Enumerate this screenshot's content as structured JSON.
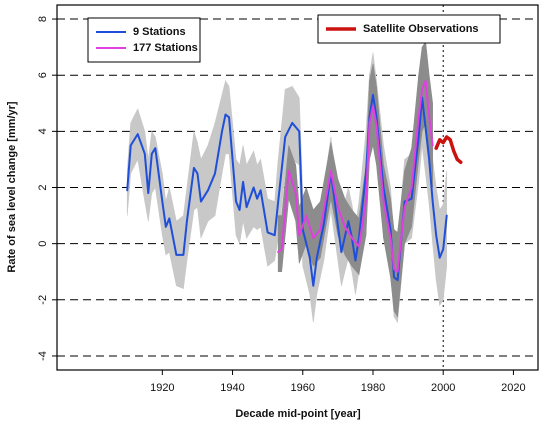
{
  "chart_data": {
    "type": "line",
    "xlabel": "Decade mid-point [year]",
    "ylabel": "Rate of sea level change [mm/yr]",
    "xlim": [
      1890,
      2027
    ],
    "ylim": [
      -4.5,
      8.5
    ],
    "xticks": [
      1920,
      1940,
      1960,
      1980,
      2000,
      2020
    ],
    "yticks": [
      -4,
      -2,
      0,
      2,
      4,
      6,
      8
    ],
    "grid": true,
    "vline": 2000,
    "legends": [
      {
        "loc": "upper left",
        "series": [
          0,
          1
        ]
      },
      {
        "loc": "upper right",
        "series": [
          2
        ]
      }
    ],
    "series": [
      {
        "name": "9 Stations",
        "color": "#1f4fd8",
        "band_color": "#c8c8c8",
        "x": [
          1910,
          1911,
          1913,
          1915,
          1916,
          1917,
          1918,
          1920,
          1921,
          1922,
          1924,
          1926,
          1927,
          1929,
          1930,
          1931,
          1933,
          1935,
          1937,
          1938,
          1939,
          1941,
          1942,
          1943,
          1944,
          1946,
          1947,
          1948,
          1950,
          1952,
          1953,
          1955,
          1957,
          1959,
          1960,
          1962,
          1963,
          1964,
          1966,
          1968,
          1969,
          1971,
          1973,
          1974,
          1975,
          1976,
          1978,
          1979,
          1980,
          1981,
          1983,
          1985,
          1986,
          1987,
          1989,
          1991,
          1993,
          1994,
          1996,
          1997,
          1998,
          1999,
          2000,
          2001
        ],
        "values": [
          1.9,
          3.5,
          3.9,
          3.2,
          1.8,
          3.2,
          3.4,
          1.5,
          0.6,
          0.9,
          -0.4,
          -0.4,
          0.8,
          2.7,
          2.5,
          1.5,
          1.9,
          2.5,
          4.0,
          4.6,
          4.5,
          1.5,
          1.2,
          2.2,
          1.3,
          2.0,
          1.6,
          1.9,
          0.4,
          0.3,
          1.5,
          3.8,
          4.3,
          4.0,
          0.5,
          -0.5,
          -1.5,
          -0.5,
          0.7,
          2.5,
          1.6,
          -0.3,
          0.8,
          0.2,
          -0.6,
          0.2,
          2.5,
          4.5,
          5.3,
          4.5,
          2.0,
          0.5,
          -1.2,
          -1.3,
          1.5,
          1.6,
          3.8,
          5.2,
          3.0,
          1.5,
          0.3,
          -0.5,
          -0.2,
          1.0
        ],
        "lower": [
          1.0,
          2.5,
          3.0,
          1.5,
          0.8,
          1.8,
          2.0,
          0.3,
          -0.4,
          -0.3,
          -1.5,
          -1.6,
          -0.6,
          1.2,
          1.3,
          0.2,
          0.8,
          1.0,
          2.5,
          3.2,
          3.2,
          0.3,
          0.0,
          0.8,
          0.2,
          0.6,
          0.5,
          0.6,
          -0.8,
          -0.6,
          0.2,
          2.5,
          3.0,
          2.8,
          -0.8,
          -1.8,
          -2.8,
          -1.8,
          -0.6,
          1.2,
          0.3,
          -1.5,
          -0.5,
          -1.0,
          -1.8,
          -1.0,
          1.0,
          3.0,
          3.8,
          3.0,
          0.5,
          -1.0,
          -2.6,
          -2.8,
          0.0,
          0.2,
          2.2,
          3.5,
          1.4,
          0.0,
          -1.3,
          -2.2,
          -2.0,
          -0.8
        ],
        "upper": [
          2.6,
          4.3,
          4.8,
          4.0,
          3.0,
          4.0,
          3.8,
          2.5,
          1.5,
          2.0,
          0.8,
          1.0,
          2.0,
          4.0,
          3.6,
          3.0,
          3.5,
          4.3,
          5.3,
          5.8,
          5.6,
          3.0,
          2.8,
          3.5,
          2.8,
          3.3,
          2.8,
          3.0,
          1.6,
          1.5,
          3.0,
          5.5,
          5.6,
          5.2,
          1.8,
          0.8,
          -0.2,
          0.8,
          2.0,
          3.8,
          2.8,
          1.0,
          2.0,
          1.4,
          0.6,
          1.5,
          4.0,
          6.0,
          6.8,
          5.8,
          3.5,
          2.0,
          0.2,
          0.0,
          3.0,
          3.2,
          5.4,
          6.8,
          4.6,
          3.0,
          2.0,
          1.2,
          1.4,
          2.6
        ]
      },
      {
        "name": "177 Stations",
        "color": "#e040e0",
        "band_color": "#8c8c8c",
        "x": [
          1953,
          1954,
          1956,
          1958,
          1959,
          1961,
          1963,
          1965,
          1968,
          1970,
          1972,
          1974,
          1976,
          1978,
          1979,
          1980,
          1981,
          1983,
          1985,
          1986,
          1987,
          1989,
          1991,
          1993,
          1994,
          1995,
          1996,
          1997
        ],
        "values": [
          -0.3,
          -0.2,
          2.6,
          1.8,
          0.3,
          1.0,
          0.2,
          0.5,
          2.6,
          1.3,
          0.6,
          0.2,
          -0.1,
          1.5,
          4.3,
          4.9,
          4.2,
          1.5,
          0.2,
          -0.9,
          -1.0,
          1.3,
          2.0,
          4.5,
          5.5,
          5.8,
          4.5,
          3.5
        ],
        "lower": [
          -1.0,
          -1.0,
          1.6,
          0.8,
          -0.7,
          0.0,
          -0.8,
          -0.5,
          1.6,
          0.3,
          -0.4,
          -0.8,
          -1.1,
          0.3,
          3.0,
          3.5,
          2.8,
          0.2,
          -1.2,
          -2.4,
          -2.6,
          0.0,
          0.6,
          3.0,
          4.0,
          4.3,
          3.0,
          2.0
        ],
        "upper": [
          1.0,
          1.0,
          3.5,
          2.8,
          1.3,
          2.0,
          1.2,
          1.5,
          3.6,
          2.3,
          1.6,
          1.2,
          0.9,
          2.8,
          5.8,
          6.4,
          5.6,
          2.8,
          1.6,
          0.5,
          0.4,
          2.6,
          3.4,
          6.0,
          7.0,
          7.2,
          6.0,
          5.0
        ]
      },
      {
        "name": "Satellite Observations",
        "color": "#cc1111",
        "x": [
          1998,
          1999,
          2000,
          2001,
          2002,
          2003,
          2004,
          2005
        ],
        "values": [
          3.4,
          3.7,
          3.6,
          3.8,
          3.7,
          3.3,
          3.0,
          2.9
        ]
      }
    ]
  }
}
